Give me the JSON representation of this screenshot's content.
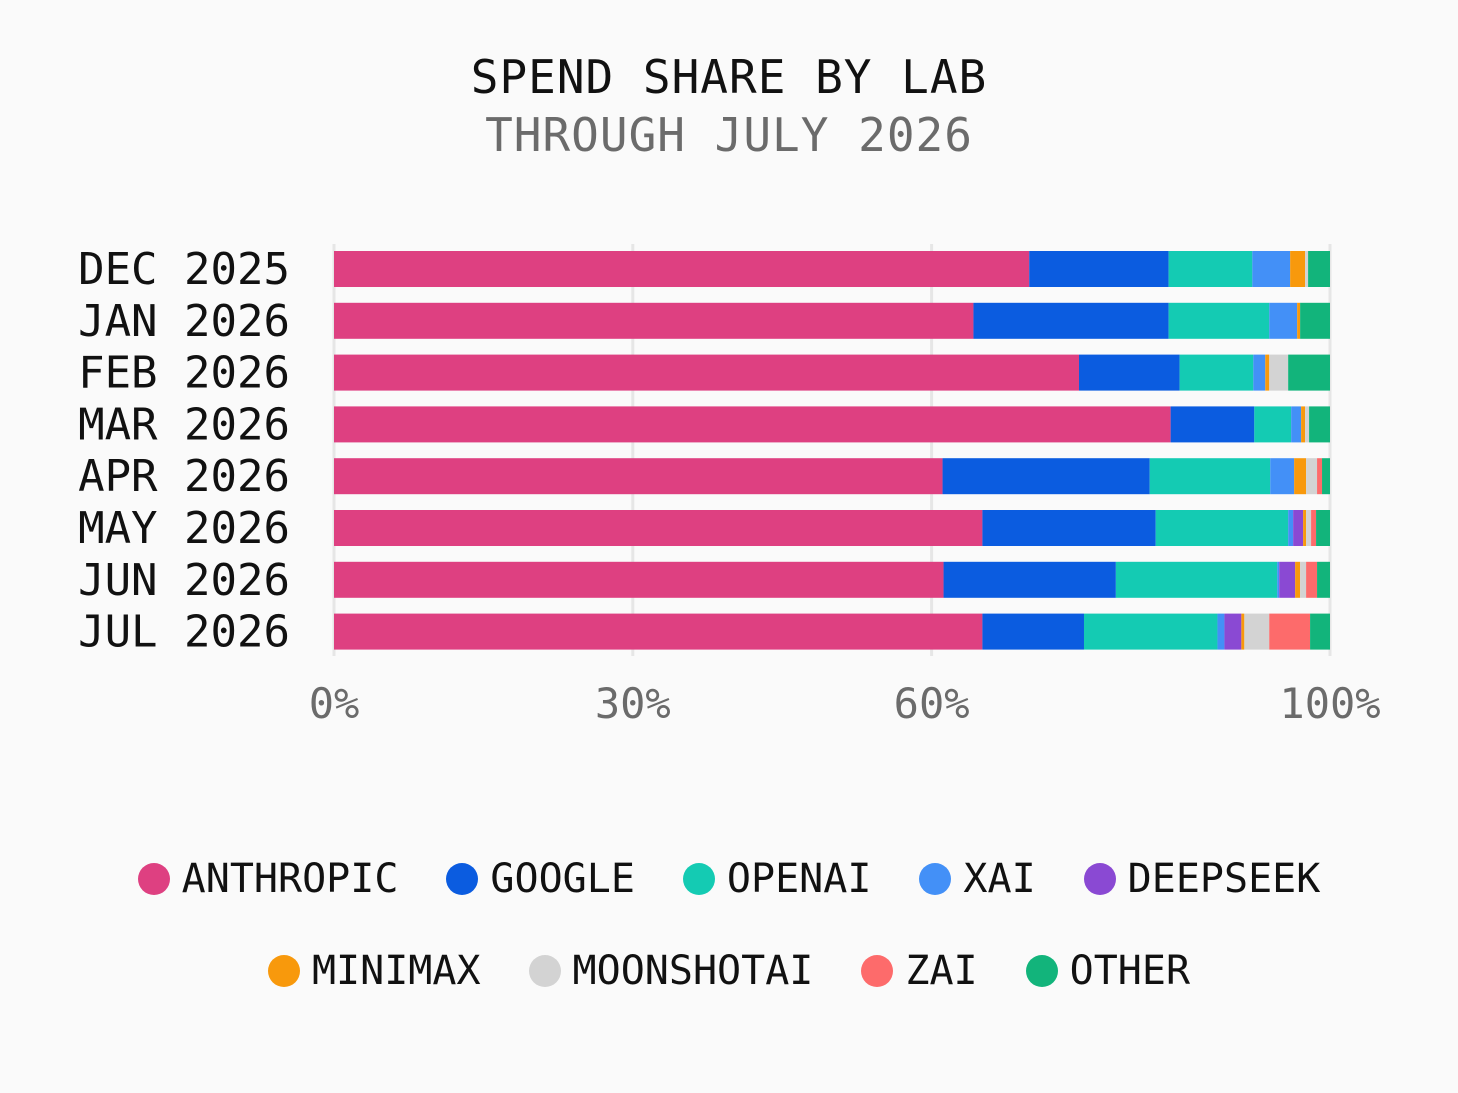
{
  "chart_data": {
    "type": "bar",
    "orientation": "horizontal",
    "stacked": true,
    "title": "SPEND SHARE BY LAB",
    "subtitle": "THROUGH JULY 2026",
    "categories": [
      "DEC 2025",
      "JAN 2026",
      "FEB 2026",
      "MAR 2026",
      "APR 2026",
      "MAY 2026",
      "JUN 2026",
      "JUL 2026"
    ],
    "x_ticks": [
      0,
      30,
      60,
      100
    ],
    "x_tick_labels": [
      "0%",
      "30%",
      "60%",
      "100%"
    ],
    "xlim": [
      0,
      100
    ],
    "grid": "vertical",
    "legend_position": "bottom",
    "series": [
      {
        "name": "ANTHROPIC",
        "color": "#de4081",
        "values": [
          69.8,
          64.2,
          74.8,
          84.0,
          61.1,
          65.1,
          61.2,
          65.1
        ]
      },
      {
        "name": "GOOGLE",
        "color": "#0b5ce0",
        "values": [
          14.0,
          19.6,
          10.1,
          8.4,
          20.8,
          17.4,
          17.3,
          10.2
        ]
      },
      {
        "name": "OPENAI",
        "color": "#14cbb3",
        "values": [
          8.4,
          10.1,
          7.4,
          3.7,
          12.1,
          13.3,
          16.2,
          13.4
        ]
      },
      {
        "name": "XAI",
        "color": "#4390f7",
        "values": [
          3.8,
          2.8,
          1.2,
          1.0,
          2.4,
          0.5,
          0.2,
          0.7
        ]
      },
      {
        "name": "DEEPSEEK",
        "color": "#8a49d3",
        "values": [
          0.0,
          0.0,
          0.0,
          0.0,
          0.0,
          1.0,
          1.6,
          1.7
        ]
      },
      {
        "name": "MINIMAX",
        "color": "#f8990c",
        "values": [
          1.5,
          0.3,
          0.4,
          0.4,
          1.2,
          0.3,
          0.5,
          0.3
        ]
      },
      {
        "name": "MOONSHOTAI",
        "color": "#d3d3d3",
        "values": [
          0.3,
          0.0,
          1.9,
          0.4,
          1.1,
          0.5,
          0.6,
          2.5
        ]
      },
      {
        "name": "ZAI",
        "color": "#fd6b6b",
        "values": [
          0.0,
          0.0,
          0.0,
          0.0,
          0.5,
          0.5,
          1.1,
          4.1
        ]
      },
      {
        "name": "OTHER",
        "color": "#12b47b",
        "values": [
          2.2,
          3.0,
          4.2,
          2.1,
          0.8,
          1.4,
          1.3,
          2.0
        ]
      }
    ]
  }
}
